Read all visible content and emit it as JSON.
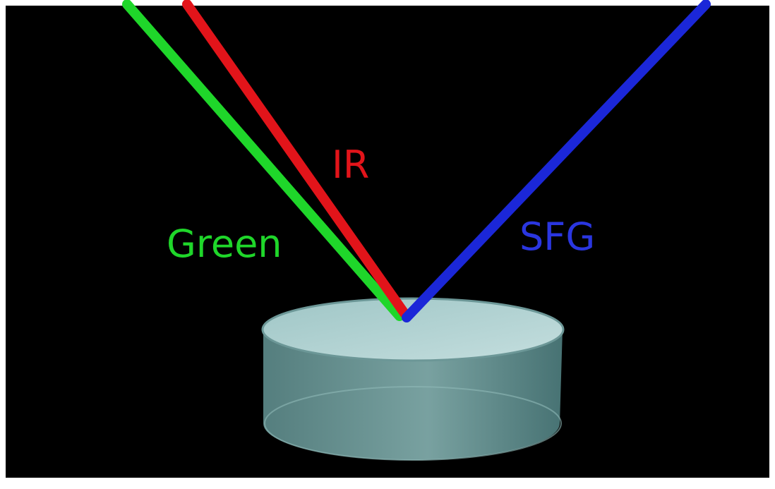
{
  "beams": [
    {
      "label": "Green"
    },
    {
      "label": "IR"
    },
    {
      "label": "SFG"
    }
  ]
}
